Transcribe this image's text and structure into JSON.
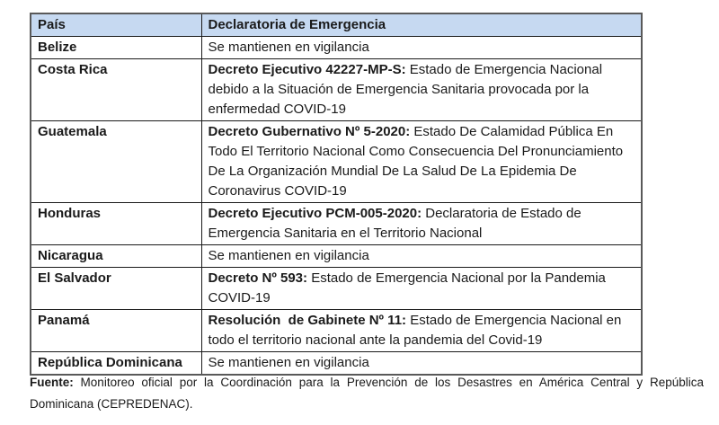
{
  "table": {
    "headers": [
      "País",
      "Declaratoria de Emergencia"
    ],
    "rows": [
      {
        "country": "Belize",
        "decree": "",
        "description": "Se mantienen en vigilancia"
      },
      {
        "country": "Costa Rica",
        "decree": "Decreto Ejecutivo 42227-MP-S:",
        "description": " Estado de Emergencia Nacional debido a la Situación de Emergencia Sanitaria provocada por la enfermedad COVID-19"
      },
      {
        "country": "Guatemala",
        "decree": "Decreto Gubernativo Nº 5-2020:",
        "description": " Estado De Calamidad Pública En Todo El Territorio Nacional Como Consecuencia Del Pronunciamiento De La Organización Mundial De La Salud De La Epidemia De Coronavirus COVID-19"
      },
      {
        "country": "Honduras",
        "decree": "Decreto Ejecutivo PCM-005-2020:",
        "description": " Declaratoria de Estado de Emergencia Sanitaria en el Territorio Nacional"
      },
      {
        "country": "Nicaragua",
        "decree": "",
        "description": "Se mantienen en vigilancia"
      },
      {
        "country": "El Salvador",
        "decree": "Decreto Nº 593:",
        "description": " Estado de Emergencia Nacional por la Pandemia COVID-19"
      },
      {
        "country": "Panamá",
        "decree": "Resolución  de Gabinete Nº 11:",
        "description": " Estado de Emergencia Nacional en todo el territorio nacional ante la pandemia del Covid-19"
      },
      {
        "country": "República Dominicana",
        "decree": "",
        "description": "Se mantienen en vigilancia"
      }
    ]
  },
  "footer": {
    "label": "Fuente:",
    "text": " Monitoreo oficial por la Coordinación para la Prevención de los Desastres en América Central y República Dominicana (CEPREDENAC)."
  },
  "colors": {
    "header_bg": "#C6D9F1",
    "border_inner": "#1a1a1a",
    "border_outer": "#595959",
    "text": "#1a1a1a"
  }
}
